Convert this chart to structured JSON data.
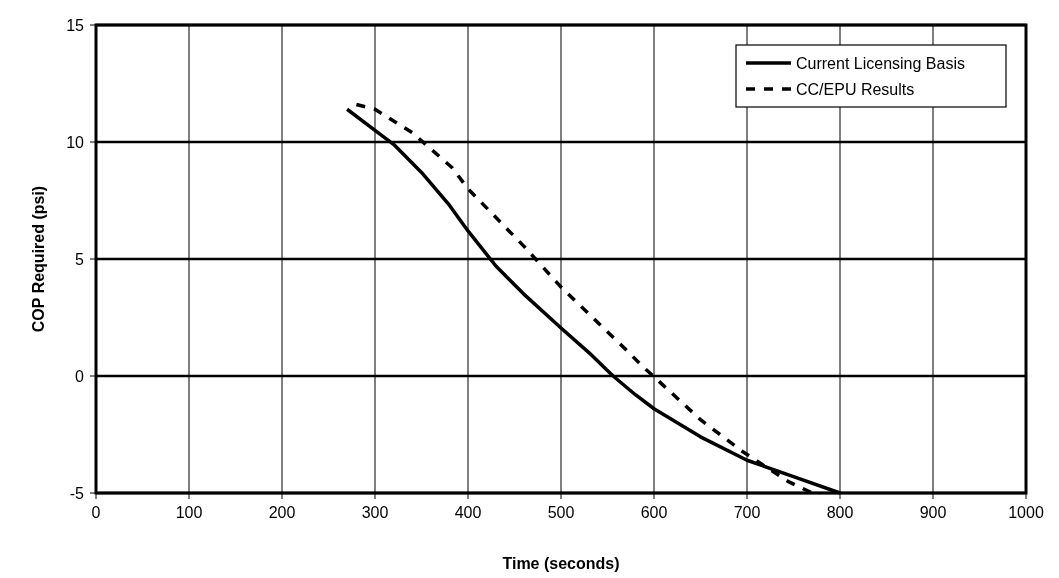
{
  "chart_data": {
    "type": "line",
    "xlabel": "Time (seconds)",
    "ylabel": "COP Required (psi)",
    "xlim": [
      0,
      1000
    ],
    "xticks": [
      0,
      100,
      200,
      300,
      400,
      500,
      600,
      700,
      800,
      900,
      1000
    ],
    "ylim": [
      -5,
      15
    ],
    "yticks": [
      -5,
      0,
      5,
      10,
      15
    ],
    "grid": true,
    "legend": "top right",
    "series": [
      {
        "name": "Current Licensing Basis",
        "color": "#000000",
        "line_style": "solid",
        "x": [
          270,
          300,
          320,
          350,
          380,
          400,
          430,
          460,
          500,
          530,
          556,
          580,
          600,
          650,
          700,
          750,
          800
        ],
        "values": [
          11.4,
          10.5,
          9.9,
          8.7,
          7.3,
          6.2,
          4.7,
          3.5,
          2.05,
          1.0,
          0,
          -0.8,
          -1.4,
          -2.6,
          -3.6,
          -4.3,
          -5
        ]
      },
      {
        "name": "CC/EPU Results",
        "color": "#000000",
        "line_style": "dashed",
        "x": [
          280,
          300,
          340,
          383,
          400,
          460,
          500,
          568,
          588,
          610,
          651,
          696,
          744,
          770
        ],
        "values": [
          11.6,
          11.4,
          10.4,
          8.9,
          8.0,
          5.55,
          3.8,
          1.2,
          0.4,
          -0.4,
          -1.9,
          -3.25,
          -4.5,
          -5
        ]
      }
    ]
  }
}
